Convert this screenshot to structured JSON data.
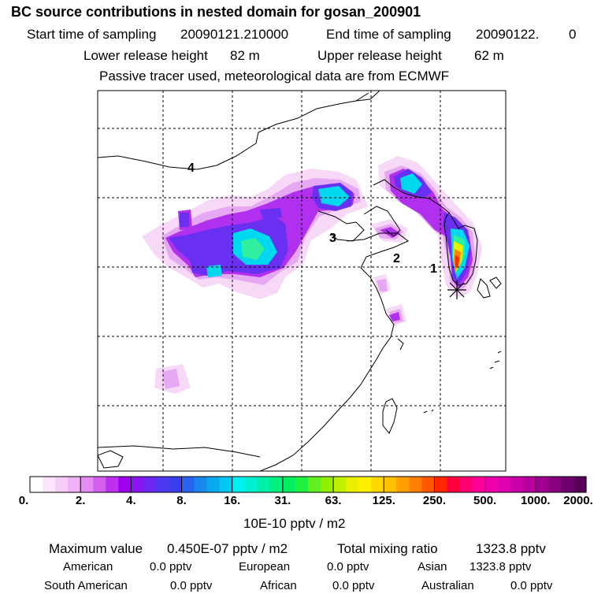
{
  "header": {
    "title": "BC  source contributions in nested domain for gosan_200901",
    "start_label": "Start time of sampling",
    "start_value": "20090121.210000",
    "end_label": "End time of sampling",
    "end_value": "20090122.",
    "end_value_extra": "0",
    "lower_label": "Lower release height",
    "lower_value": "82 m",
    "upper_label": "Upper release height",
    "upper_value": "62 m",
    "note": "Passive tracer used, meteorological data are from ECMWF"
  },
  "map": {
    "region_labels": [
      "1",
      "2",
      "3",
      "4"
    ],
    "receptor": "gosan",
    "colors": {
      "frame": "#000000",
      "grid": "#000000",
      "coast": "#000000"
    }
  },
  "colorbar": {
    "tick_labels": [
      "0.",
      "2.",
      "4.",
      "8.",
      "16.",
      "31.",
      "63.",
      "125.",
      "250.",
      "500.",
      "1000.",
      "2000."
    ],
    "colors": [
      "#ffffff",
      "#fbe6fb",
      "#f5cdf7",
      "#efb2f5",
      "#e48cf2",
      "#d460f0",
      "#c02ff0",
      "#a000f0",
      "#8818f2",
      "#6a28f2",
      "#4e38f2",
      "#3a40ee",
      "#2a64ee",
      "#1888ee",
      "#0aa8ee",
      "#00c8f0",
      "#00f0f0",
      "#00f0d0",
      "#00f0a8",
      "#00f080",
      "#00f060",
      "#20f040",
      "#60f020",
      "#90f000",
      "#c0f000",
      "#e8f000",
      "#fff000",
      "#ffd800",
      "#ffc000",
      "#ffa000",
      "#ff8000",
      "#ff5800",
      "#ff2800",
      "#ff0040",
      "#ff0070",
      "#ff0098",
      "#f000a8",
      "#e000b0",
      "#cc00a8",
      "#b8009c",
      "#a00090",
      "#880080",
      "#700070",
      "#580058"
    ],
    "unit": "10E-10 pptv / m2"
  },
  "stats": {
    "max_label": "Maximum value",
    "max_value": "0.450E-07 pptv / m2",
    "total_label": "Total mixing ratio",
    "total_value": "1323.8 pptv",
    "regions": [
      {
        "name": "American",
        "value": "0.0 pptv"
      },
      {
        "name": "European",
        "value": "0.0 pptv"
      },
      {
        "name": "Asian",
        "value": "1323.8 pptv"
      },
      {
        "name": "South American",
        "value": "0.0 pptv"
      },
      {
        "name": "African",
        "value": "0.0 pptv"
      },
      {
        "name": "Australian",
        "value": "0.0 pptv"
      }
    ]
  }
}
